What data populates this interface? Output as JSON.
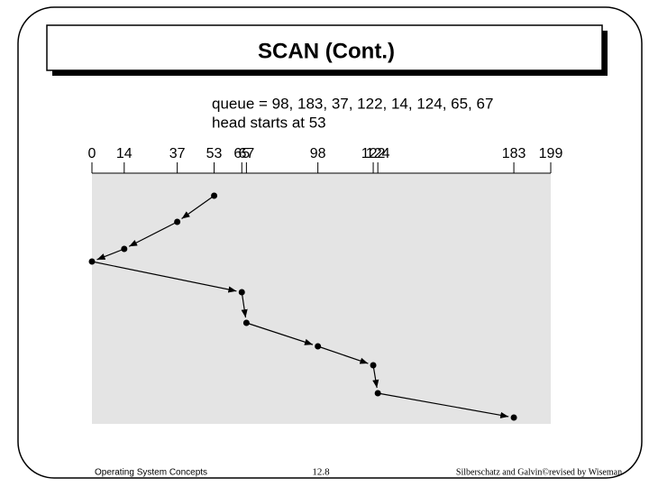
{
  "header": {
    "title": "SCAN (Cont.)"
  },
  "diagram": {
    "queue": "queue = 98, 183, 37, 122, 14, 124, 65, 67",
    "head": "head starts at 53",
    "ticks": [
      0,
      14,
      37,
      53,
      65,
      67,
      98,
      122,
      124,
      183,
      199
    ]
  },
  "footer": {
    "left": "Operating System Concepts",
    "center": "12.8",
    "right": "Silberschatz and Galvin©revised by Wiseman"
  }
}
